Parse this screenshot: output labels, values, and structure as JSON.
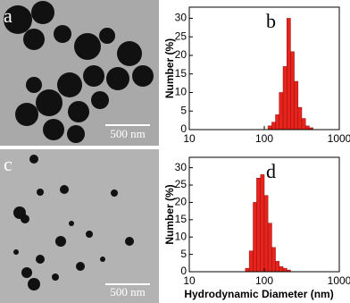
{
  "images": [
    {
      "label": "a",
      "scale": "500 nm"
    },
    {
      "label": "c",
      "scale": "500 nm"
    }
  ],
  "chart_data": [
    {
      "type": "histogram",
      "panel_label": "b",
      "y_label": "Number (%)",
      "xscale": "log",
      "color": "#e8231c",
      "bins": [
        112,
        126,
        141,
        158,
        178,
        200,
        224,
        251,
        282,
        316,
        355,
        398,
        447
      ],
      "values": [
        1,
        2,
        4,
        10,
        17,
        30,
        21,
        13,
        6,
        3,
        1,
        0.5
      ],
      "xlim": [
        10,
        1000
      ],
      "xticks": [
        10,
        100,
        1000
      ],
      "ylim": [
        0,
        33
      ],
      "yticks": [
        0,
        5,
        10,
        15,
        20,
        25,
        30
      ]
    },
    {
      "type": "histogram",
      "panel_label": "d",
      "y_label": "Number (%)",
      "x_label": "Hydrodynamic Diameter (nm)",
      "xscale": "log",
      "color": "#e8231c",
      "bins": [
        56,
        63,
        71,
        79,
        89,
        100,
        112,
        126,
        141,
        158,
        178,
        200,
        224
      ],
      "values": [
        1,
        6,
        20,
        27,
        28,
        22,
        14,
        7,
        3,
        1.5,
        1,
        0.5
      ],
      "xlim": [
        10,
        1000
      ],
      "xticks": [
        10,
        100,
        1000
      ],
      "ylim": [
        0,
        33
      ],
      "yticks": [
        0,
        5,
        10,
        15,
        20,
        25,
        30
      ]
    }
  ]
}
